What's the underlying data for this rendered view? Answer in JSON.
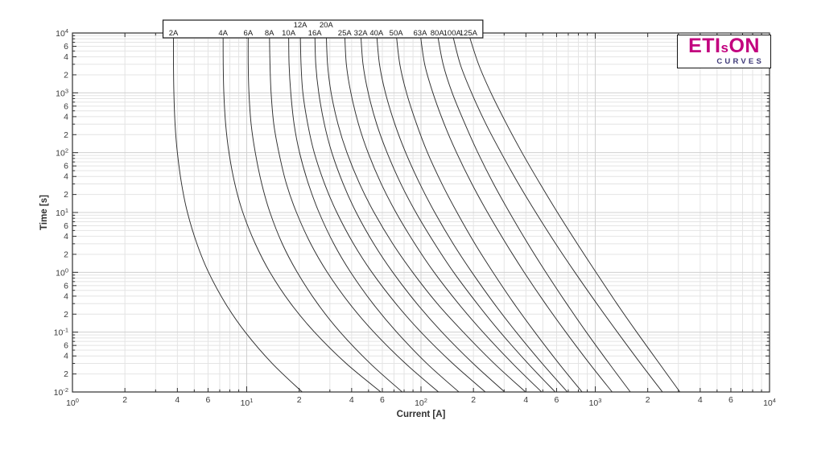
{
  "logo": {
    "text_main_parts": [
      "ETI",
      "s",
      "ON"
    ],
    "text_sub": "CURVES",
    "color_main": "#c2007e",
    "color_sub": "#3e3a78"
  },
  "chart_data": {
    "type": "line",
    "title": "",
    "xlabel": "Current [A]",
    "ylabel": "Time [s]",
    "xscale": "log",
    "yscale": "log",
    "xlim": [
      1,
      10000
    ],
    "ylim": [
      0.01,
      10000
    ],
    "grid": true,
    "legend_position": "top-inside-box",
    "labeled_minor_ticks": [
      2,
      4,
      6
    ],
    "x_tick_labels": [
      "10^0",
      "2",
      "4",
      "6",
      "10^1",
      "2",
      "4",
      "6",
      "10^2",
      "2",
      "4",
      "6",
      "10^3",
      "2",
      "4",
      "6",
      "10^4"
    ],
    "y_tick_labels": [
      "10^-2",
      "2",
      "4",
      "6",
      "10^-1",
      "2",
      "4",
      "6",
      "10^0",
      "2",
      "4",
      "6",
      "10^1",
      "2",
      "4",
      "6",
      "10^2",
      "2",
      "4",
      "6",
      "10^3",
      "2",
      "4",
      "6",
      "10^4"
    ],
    "times_s": [
      10000,
      3000,
      1000,
      300,
      100,
      30,
      10,
      3,
      1,
      0.3,
      0.1,
      0.03,
      0.01
    ],
    "series": [
      {
        "name": "2A",
        "rating_A": 2,
        "label_row": "bottom",
        "current_A": [
          3.8,
          3.8,
          3.82,
          3.88,
          4.0,
          4.23,
          4.57,
          5.18,
          6.04,
          7.56,
          9.81,
          14.0,
          20.8
        ]
      },
      {
        "name": "4A",
        "rating_A": 4,
        "label_row": "bottom",
        "current_A": [
          7.32,
          7.33,
          7.39,
          7.57,
          7.91,
          8.55,
          9.5,
          11.2,
          13.6,
          17.9,
          24.5,
          37.2,
          58.8
        ]
      },
      {
        "name": "6A",
        "rating_A": 6,
        "label_row": "bottom",
        "current_A": [
          10.2,
          10.2,
          10.3,
          10.6,
          11.2,
          12.2,
          13.6,
          16.0,
          19.5,
          25.5,
          34.4,
          51.1,
          78.0
        ]
      },
      {
        "name": "8A",
        "rating_A": 8,
        "label_row": "bottom",
        "current_A": [
          13.5,
          13.6,
          13.8,
          14.3,
          15.3,
          16.9,
          19.3,
          23.3,
          29.0,
          38.9,
          53.7,
          81.4,
          126
        ]
      },
      {
        "name": "10A",
        "rating_A": 10,
        "label_row": "bottom",
        "current_A": [
          17.4,
          17.5,
          17.9,
          18.7,
          20.1,
          22.6,
          26.0,
          31.6,
          39.5,
          53.0,
          72.6,
          108,
          165
        ]
      },
      {
        "name": "12A",
        "rating_A": 12,
        "label_row": "top",
        "current_A": [
          20.3,
          20.5,
          21.0,
          22.4,
          24.4,
          28.0,
          32.9,
          41.0,
          52.3,
          71.7,
          100,
          152,
          234
        ]
      },
      {
        "name": "16A",
        "rating_A": 16,
        "label_row": "bottom",
        "current_A": [
          24.6,
          24.9,
          25.9,
          27.9,
          30.8,
          35.8,
          42.5,
          53.6,
          68.9,
          94.7,
          132,
          199,
          302
        ]
      },
      {
        "name": "20A",
        "rating_A": 20,
        "label_row": "top",
        "current_A": [
          28.6,
          29.1,
          30.5,
          33.4,
          37.6,
          44.5,
          53.8,
          68.9,
          89.6,
          124,
          175,
          263,
          398
        ]
      },
      {
        "name": "25A",
        "rating_A": 25,
        "label_row": "bottom",
        "current_A": [
          36.5,
          37.3,
          39.6,
          43.8,
          49.7,
          59.2,
          71.9,
          92.2,
          119,
          164,
          227,
          335,
          492
        ]
      },
      {
        "name": "32A",
        "rating_A": 32,
        "label_row": "bottom",
        "current_A": [
          45.1,
          46.5,
          49.8,
          55.7,
          63.9,
          76.7,
          93.5,
          120,
          154,
          210,
          285,
          411,
          589
        ]
      },
      {
        "name": "40A",
        "rating_A": 40,
        "label_row": "bottom",
        "current_A": [
          55.6,
          57.8,
          62.5,
          70.8,
          81.7,
          98.6,
          120,
          153,
          196,
          263,
          352,
          496,
          692
        ]
      },
      {
        "name": "50A",
        "rating_A": 50,
        "label_row": "bottom",
        "current_A": [
          72.0,
          75.6,
          82.6,
          94.4,
          109,
          132,
          161,
          204,
          259,
          342,
          450,
          618,
          840
        ]
      },
      {
        "name": "63A",
        "rating_A": 63,
        "label_row": "bottom",
        "current_A": [
          98.9,
          105,
          117,
          136,
          160,
          196,
          241,
          308,
          391,
          517,
          678,
          926,
          1250
        ]
      },
      {
        "name": "80A",
        "rating_A": 80,
        "label_row": "bottom",
        "current_A": [
          124,
          134,
          151,
          179,
          212,
          261,
          322,
          411,
          521,
          685,
          889,
          1200,
          1590
        ]
      },
      {
        "name": "100A",
        "rating_A": 100,
        "label_row": "bottom",
        "current_A": [
          151,
          168,
          195,
          236,
          288,
          363,
          456,
          593,
          764,
          1020,
          1340,
          1820,
          2430
        ]
      },
      {
        "name": "125A",
        "rating_A": 125,
        "label_row": "bottom",
        "current_A": [
          187,
          214,
          252,
          310,
          380,
          483,
          607,
          789,
          1010,
          1330,
          1730,
          2330,
          3060
        ]
      }
    ],
    "colors": {
      "curve": "#2e2e2e",
      "grid_major": "#d0d0d0",
      "grid_minor": "#e4e4e4",
      "axis": "#2f2f2f",
      "tick_label": "#3a3a3a",
      "axis_title": "#303030",
      "label_box_border": "#1a1a1a",
      "label_box_fill": "#ffffff",
      "rating_label": "#1a1a1a"
    }
  }
}
